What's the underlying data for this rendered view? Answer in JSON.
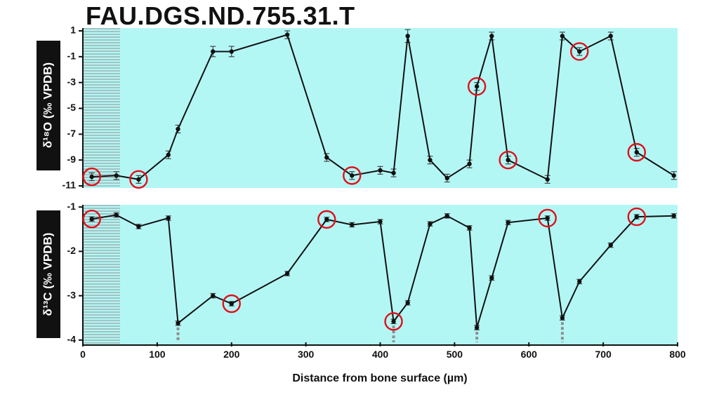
{
  "title": "FAU.DGS.ND.755.31.T",
  "colors": {
    "panel_bg": "#b3f7f5",
    "hatch": "#9aa7aa",
    "line": "#111111",
    "marker_circle": "#e0101a",
    "dashed_marker": "#8f8f8f"
  },
  "chart_data": [
    {
      "type": "line",
      "ylabel": "δ¹⁸O (‰ VPDB)",
      "ylim": [
        -11,
        1
      ],
      "yticks": [
        1,
        -1,
        -3,
        -5,
        -7,
        -9,
        -11
      ],
      "xlim": [
        0,
        800
      ],
      "hatched_region_x": [
        0,
        50
      ],
      "series": [
        {
          "x": [
            12,
            45,
            75,
            115,
            128,
            175,
            200,
            275,
            328,
            362,
            400,
            418,
            437,
            467,
            490,
            520,
            530,
            550,
            572,
            625,
            645,
            668,
            710,
            745,
            795
          ],
          "y": [
            -10.3,
            -10.2,
            -10.5,
            -8.6,
            -6.6,
            -0.6,
            -0.6,
            0.7,
            -8.8,
            -10.2,
            -9.8,
            -10.0,
            0.6,
            -9.0,
            -10.4,
            -9.3,
            -3.3,
            0.6,
            -9.0,
            -10.5,
            0.6,
            -0.6,
            0.6,
            -8.4,
            -10.2
          ],
          "err": [
            0.3,
            0.3,
            0.3,
            0.3,
            0.3,
            0.4,
            0.4,
            0.3,
            0.3,
            0.3,
            0.3,
            0.3,
            0.5,
            0.3,
            0.3,
            0.3,
            0.3,
            0.3,
            0.3,
            0.3,
            0.3,
            0.3,
            0.3,
            0.3,
            0.3
          ]
        }
      ],
      "circled_x": [
        12,
        75,
        362,
        530,
        572,
        668,
        745
      ]
    },
    {
      "type": "line",
      "ylabel": "δ¹³C (‰ VPDB)",
      "xlabel": "Distance from bone surface (µm)",
      "ylim": [
        -4.05,
        -0.95
      ],
      "yticks": [
        -1,
        -2,
        -3,
        -4
      ],
      "xlim": [
        0,
        800
      ],
      "xticks": [
        0,
        100,
        200,
        300,
        400,
        500,
        600,
        700,
        800
      ],
      "hatched_region_x": [
        0,
        50
      ],
      "series": [
        {
          "x": [
            12,
            45,
            75,
            115,
            128,
            175,
            200,
            275,
            328,
            362,
            400,
            418,
            437,
            467,
            490,
            520,
            530,
            550,
            572,
            625,
            645,
            668,
            710,
            745,
            795
          ],
          "y": [
            -1.27,
            -1.18,
            -1.44,
            -1.25,
            -3.62,
            -3.0,
            -3.18,
            -2.5,
            -1.28,
            -1.4,
            -1.33,
            -3.58,
            -3.16,
            -1.38,
            -1.2,
            -1.47,
            -3.72,
            -2.6,
            -1.35,
            -1.25,
            -3.5,
            -2.68,
            -1.86,
            -1.22,
            -1.2
          ]
        }
      ],
      "circled_x": [
        12,
        200,
        328,
        418,
        625,
        745
      ],
      "dashed_drop_x": [
        128,
        418,
        530,
        645
      ]
    }
  ]
}
